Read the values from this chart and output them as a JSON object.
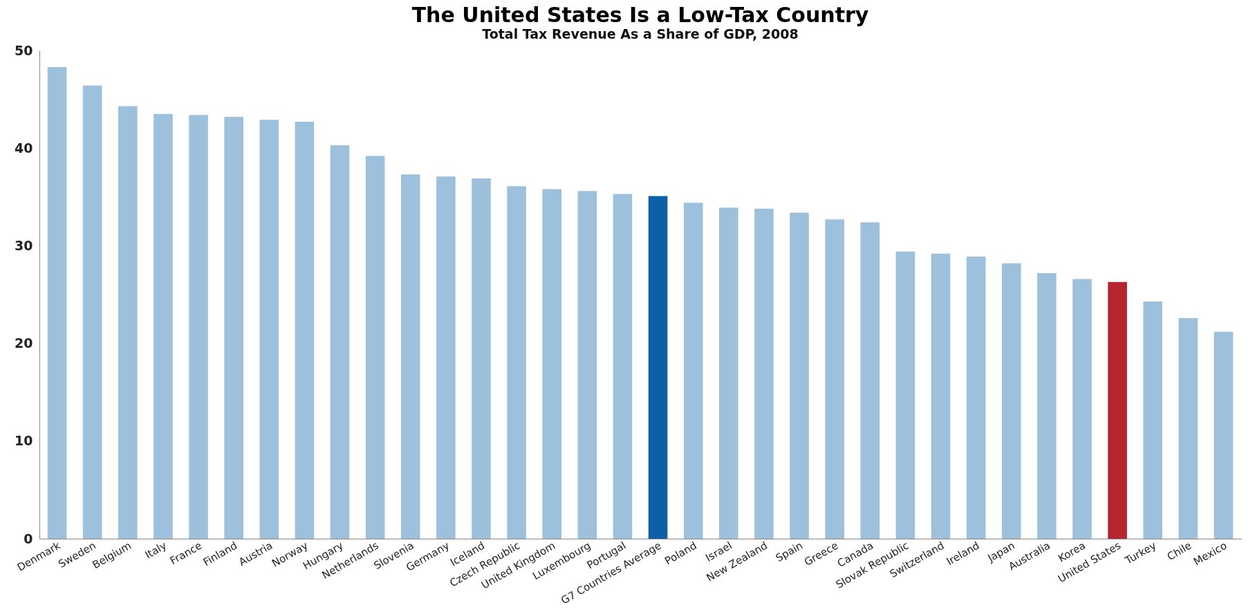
{
  "chart_data": {
    "type": "bar",
    "title": "The United States Is a Low-Tax Country",
    "subtitle": "Total Tax Revenue As a Share of GDP, 2008",
    "categories": [
      "Denmark",
      "Sweden",
      "Belgium",
      "Italy",
      "France",
      "Finland",
      "Austria",
      "Norway",
      "Hungary",
      "Netherlands",
      "Slovenia",
      "Germany",
      "Iceland",
      "Czech Republic",
      "United Kingdom",
      "Luxembourg",
      "Portugal",
      "G7 Countries Average",
      "Poland",
      "Israel",
      "New Zealand",
      "Spain",
      "Greece",
      "Canada",
      "Slovak Republic",
      "Switzerland",
      "Ireland",
      "Japan",
      "Australia",
      "Korea",
      "United States",
      "Turkey",
      "Chile",
      "Mexico"
    ],
    "values": [
      48.3,
      46.4,
      44.3,
      43.5,
      43.4,
      43.2,
      42.9,
      42.7,
      40.3,
      39.2,
      37.3,
      37.1,
      36.9,
      36.1,
      35.8,
      35.6,
      35.3,
      35.1,
      34.4,
      33.9,
      33.8,
      33.4,
      32.7,
      32.4,
      29.4,
      29.2,
      28.9,
      28.2,
      27.2,
      26.6,
      26.3,
      24.3,
      22.6,
      21.2
    ],
    "colors": [
      "#9dc0dc",
      "#9dc0dc",
      "#9dc0dc",
      "#9dc0dc",
      "#9dc0dc",
      "#9dc0dc",
      "#9dc0dc",
      "#9dc0dc",
      "#9dc0dc",
      "#9dc0dc",
      "#9dc0dc",
      "#9dc0dc",
      "#9dc0dc",
      "#9dc0dc",
      "#9dc0dc",
      "#9dc0dc",
      "#9dc0dc",
      "#0d5fa6",
      "#9dc0dc",
      "#9dc0dc",
      "#9dc0dc",
      "#9dc0dc",
      "#9dc0dc",
      "#9dc0dc",
      "#9dc0dc",
      "#9dc0dc",
      "#9dc0dc",
      "#9dc0dc",
      "#9dc0dc",
      "#9dc0dc",
      "#b5252e",
      "#9dc0dc",
      "#9dc0dc",
      "#9dc0dc"
    ],
    "ylim": [
      0,
      50
    ],
    "yticks": [
      0,
      10,
      20,
      30,
      40,
      50
    ],
    "grid": false,
    "legend": false
  }
}
